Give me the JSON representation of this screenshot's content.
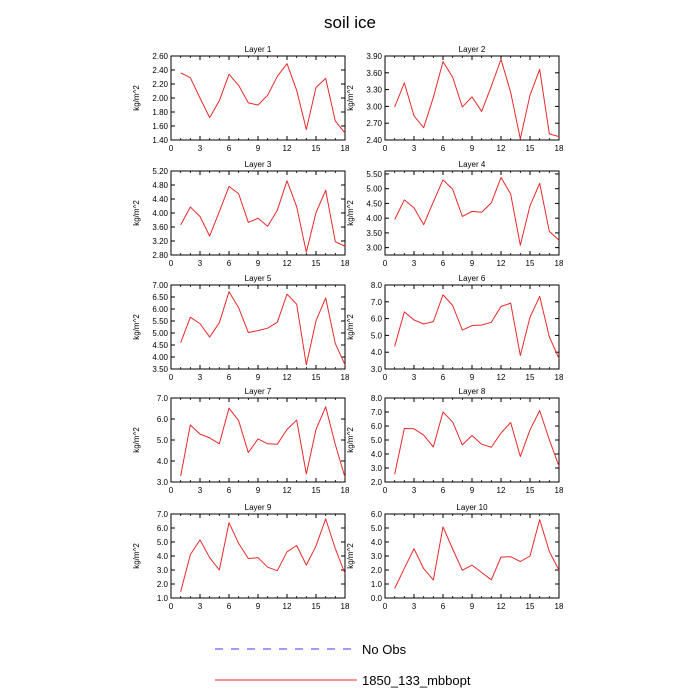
{
  "title": "soil ice",
  "legend": {
    "placement": "bottom-center",
    "entries": [
      {
        "label": "No Obs",
        "style": "dashed",
        "color": "#3b3bd9"
      },
      {
        "label": "1850_133_mbbopt",
        "style": "solid",
        "color": "#e8292b"
      }
    ]
  },
  "chart_data": [
    {
      "type": "line",
      "title": "Layer 1",
      "ylabel": "kg/m^2",
      "xlim": [
        0,
        18
      ],
      "ylim": [
        1.4,
        2.6
      ],
      "xticks": [
        "0",
        "3",
        "6",
        "9",
        "12",
        "15",
        "18"
      ],
      "yticks": [
        "1.40",
        "1.60",
        "1.80",
        "2.00",
        "2.20",
        "2.40",
        "2.60"
      ],
      "series": [
        {
          "name": "1850_133_mbbopt",
          "color": "#e8292b",
          "x": [
            1,
            2,
            3,
            4,
            5,
            6,
            7,
            8,
            9,
            10,
            11,
            12,
            13,
            14,
            15,
            16,
            17,
            18
          ],
          "y": [
            2.36,
            2.29,
            2.0,
            1.72,
            1.96,
            2.34,
            2.18,
            1.93,
            1.9,
            2.04,
            2.31,
            2.49,
            2.11,
            1.55,
            2.15,
            2.28,
            1.67,
            1.5
          ]
        }
      ]
    },
    {
      "type": "line",
      "title": "Layer 2",
      "ylabel": "kg/m^2",
      "xlim": [
        0,
        18
      ],
      "ylim": [
        2.4,
        3.9
      ],
      "xticks": [
        "0",
        "3",
        "6",
        "9",
        "12",
        "15",
        "18"
      ],
      "yticks": [
        "2.40",
        "2.70",
        "3.00",
        "3.30",
        "3.60",
        "3.90"
      ],
      "series": [
        {
          "name": "1850_133_mbbopt",
          "color": "#e8292b",
          "x": [
            1,
            2,
            3,
            4,
            5,
            6,
            7,
            8,
            9,
            10,
            11,
            12,
            13,
            14,
            15,
            16,
            17,
            18
          ],
          "y": [
            2.99,
            3.42,
            2.83,
            2.62,
            3.16,
            3.8,
            3.52,
            2.99,
            3.17,
            2.91,
            3.36,
            3.84,
            3.25,
            2.42,
            3.2,
            3.66,
            2.51,
            2.46
          ]
        }
      ]
    },
    {
      "type": "line",
      "title": "Layer 3",
      "ylabel": "kg/m^2",
      "xlim": [
        0,
        18
      ],
      "ylim": [
        2.8,
        5.2
      ],
      "xticks": [
        "0",
        "3",
        "6",
        "9",
        "12",
        "15",
        "18"
      ],
      "yticks": [
        "2.80",
        "3.20",
        "3.60",
        "4.00",
        "4.40",
        "4.80",
        "5.20"
      ],
      "series": [
        {
          "name": "1850_133_mbbopt",
          "color": "#e8292b",
          "x": [
            1,
            2,
            3,
            4,
            5,
            6,
            7,
            8,
            9,
            10,
            11,
            12,
            13,
            14,
            15,
            16,
            17,
            18
          ],
          "y": [
            3.66,
            4.17,
            3.9,
            3.34,
            4.04,
            4.76,
            4.55,
            3.73,
            3.85,
            3.62,
            4.08,
            4.92,
            4.18,
            2.88,
            4.01,
            4.65,
            3.18,
            3.05
          ]
        }
      ]
    },
    {
      "type": "line",
      "title": "Layer 4",
      "ylabel": "kg/m^2",
      "xlim": [
        0,
        18
      ],
      "ylim": [
        2.75,
        5.6
      ],
      "xticks": [
        "0",
        "3",
        "6",
        "9",
        "12",
        "15",
        "18"
      ],
      "yticks": [
        "3.00",
        "3.50",
        "4.00",
        "4.50",
        "5.00",
        "5.50"
      ],
      "series": [
        {
          "name": "1850_133_mbbopt",
          "color": "#e8292b",
          "x": [
            1,
            2,
            3,
            4,
            5,
            6,
            7,
            8,
            9,
            10,
            11,
            12,
            13,
            14,
            15,
            16,
            17,
            18
          ],
          "y": [
            3.95,
            4.62,
            4.35,
            3.78,
            4.55,
            5.3,
            4.98,
            4.06,
            4.23,
            4.2,
            4.52,
            5.38,
            4.82,
            3.08,
            4.42,
            5.18,
            3.55,
            3.25
          ]
        }
      ]
    },
    {
      "type": "line",
      "title": "Layer 5",
      "ylabel": "kg/m^2",
      "xlim": [
        0,
        18
      ],
      "ylim": [
        3.5,
        7.0
      ],
      "xticks": [
        "0",
        "3",
        "6",
        "9",
        "12",
        "15",
        "18"
      ],
      "yticks": [
        "3.50",
        "4.00",
        "4.50",
        "5.00",
        "5.50",
        "6.00",
        "6.50",
        "7.00"
      ],
      "series": [
        {
          "name": "1850_133_mbbopt",
          "color": "#e8292b",
          "x": [
            1,
            2,
            3,
            4,
            5,
            6,
            7,
            8,
            9,
            10,
            11,
            12,
            13,
            14,
            15,
            16,
            17,
            18
          ],
          "y": [
            4.59,
            5.66,
            5.39,
            4.83,
            5.43,
            6.72,
            6.05,
            5.02,
            5.1,
            5.2,
            5.45,
            6.62,
            6.2,
            3.67,
            5.51,
            6.46,
            4.56,
            3.67
          ]
        }
      ]
    },
    {
      "type": "line",
      "title": "Layer 6",
      "ylabel": "kg/m^2",
      "xlim": [
        0,
        18
      ],
      "ylim": [
        3.0,
        8.0
      ],
      "xticks": [
        "0",
        "3",
        "6",
        "9",
        "12",
        "15",
        "18"
      ],
      "yticks": [
        "3.0",
        "4.0",
        "5.0",
        "6.0",
        "7.0",
        "8.0"
      ],
      "series": [
        {
          "name": "1850_133_mbbopt",
          "color": "#e8292b",
          "x": [
            1,
            2,
            3,
            4,
            5,
            6,
            7,
            8,
            9,
            10,
            11,
            12,
            13,
            14,
            15,
            16,
            17,
            18
          ],
          "y": [
            4.35,
            6.4,
            5.92,
            5.68,
            5.82,
            7.42,
            6.78,
            5.32,
            5.58,
            5.62,
            5.78,
            6.72,
            6.92,
            3.8,
            6.08,
            7.32,
            4.92,
            3.62
          ]
        }
      ]
    },
    {
      "type": "line",
      "title": "Layer 7",
      "ylabel": "kg/m^2",
      "xlim": [
        0,
        18
      ],
      "ylim": [
        3.0,
        7.0
      ],
      "xticks": [
        "0",
        "3",
        "6",
        "9",
        "12",
        "15",
        "18"
      ],
      "yticks": [
        "3.0",
        "4.0",
        "5.0",
        "6.0",
        "7.0"
      ],
      "series": [
        {
          "name": "1850_133_mbbopt",
          "color": "#e8292b",
          "x": [
            1,
            2,
            3,
            4,
            5,
            6,
            7,
            8,
            9,
            10,
            11,
            12,
            13,
            14,
            15,
            16,
            17,
            18
          ],
          "y": [
            3.28,
            5.72,
            5.28,
            5.1,
            4.82,
            6.52,
            5.92,
            4.4,
            5.05,
            4.82,
            4.8,
            5.5,
            5.95,
            3.38,
            5.5,
            6.58,
            4.78,
            3.22
          ]
        }
      ]
    },
    {
      "type": "line",
      "title": "Layer 8",
      "ylabel": "kg/m^2",
      "xlim": [
        0,
        18
      ],
      "ylim": [
        2.0,
        8.0
      ],
      "xticks": [
        "0",
        "3",
        "6",
        "9",
        "12",
        "15",
        "18"
      ],
      "yticks": [
        "2.0",
        "3.0",
        "4.0",
        "5.0",
        "6.0",
        "7.0",
        "8.0"
      ],
      "series": [
        {
          "name": "1850_133_mbbopt",
          "color": "#e8292b",
          "x": [
            1,
            2,
            3,
            4,
            5,
            6,
            7,
            8,
            9,
            10,
            11,
            12,
            13,
            14,
            15,
            16,
            17,
            18
          ],
          "y": [
            2.55,
            5.82,
            5.8,
            5.35,
            4.5,
            7.0,
            6.28,
            4.65,
            5.32,
            4.7,
            4.48,
            5.5,
            6.25,
            3.82,
            5.72,
            7.1,
            5.02,
            3.12
          ]
        }
      ]
    },
    {
      "type": "line",
      "title": "Layer 9",
      "ylabel": "kg/m^2",
      "xlim": [
        0,
        18
      ],
      "ylim": [
        1.0,
        7.0
      ],
      "xticks": [
        "0",
        "3",
        "6",
        "9",
        "12",
        "15",
        "18"
      ],
      "yticks": [
        "1.0",
        "2.0",
        "3.0",
        "4.0",
        "5.0",
        "6.0",
        "7.0"
      ],
      "series": [
        {
          "name": "1850_133_mbbopt",
          "color": "#e8292b",
          "x": [
            1,
            2,
            3,
            4,
            5,
            6,
            7,
            8,
            9,
            10,
            11,
            12,
            13,
            14,
            15,
            16,
            17,
            18
          ],
          "y": [
            1.45,
            4.1,
            5.15,
            3.88,
            3.0,
            6.38,
            4.9,
            3.82,
            3.88,
            3.2,
            2.95,
            4.3,
            4.75,
            3.35,
            4.72,
            6.65,
            4.52,
            2.75
          ]
        }
      ]
    },
    {
      "type": "line",
      "title": "Layer 10",
      "ylabel": "kg/m^2",
      "xlim": [
        0,
        18
      ],
      "ylim": [
        0.0,
        6.0
      ],
      "xticks": [
        "0",
        "3",
        "6",
        "9",
        "12",
        "15",
        "18"
      ],
      "yticks": [
        "0.0",
        "1.0",
        "2.0",
        "3.0",
        "4.0",
        "5.0",
        "6.0"
      ],
      "series": [
        {
          "name": "1850_133_mbbopt",
          "color": "#e8292b",
          "x": [
            1,
            2,
            3,
            4,
            5,
            6,
            7,
            8,
            9,
            10,
            11,
            12,
            13,
            14,
            15,
            16,
            17,
            18
          ],
          "y": [
            0.68,
            2.12,
            3.52,
            2.1,
            1.28,
            5.08,
            3.5,
            1.98,
            2.35,
            1.82,
            1.3,
            2.92,
            2.95,
            2.6,
            3.0,
            5.6,
            3.32,
            1.98
          ]
        }
      ]
    }
  ]
}
